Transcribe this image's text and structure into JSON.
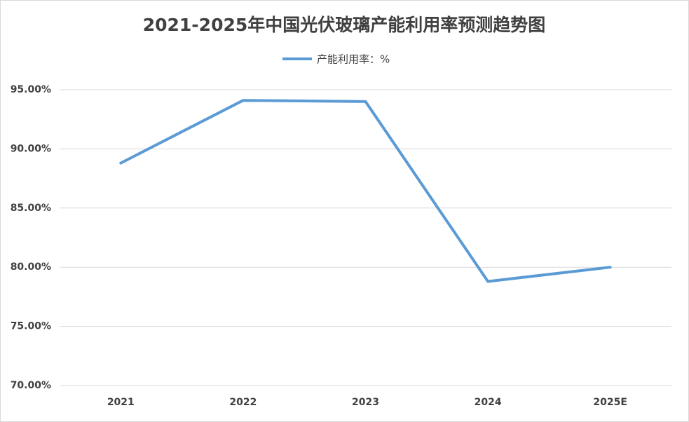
{
  "chart_data": {
    "type": "line",
    "title": "2021-2025年中国光伏玻璃产能利用率预测趋势图",
    "categories": [
      "2021",
      "2022",
      "2023",
      "2024",
      "2025E"
    ],
    "series": [
      {
        "name": "产能利用率：%",
        "color": "#5b9bd5",
        "values": [
          88.8,
          94.1,
          94.0,
          78.8,
          80.0
        ]
      }
    ],
    "ylim": [
      70,
      95
    ],
    "yticks": [
      {
        "value": 70,
        "label": "70.00%"
      },
      {
        "value": 75,
        "label": "75.00%"
      },
      {
        "value": 80,
        "label": "80.00%"
      },
      {
        "value": 85,
        "label": "85.00%"
      },
      {
        "value": 90,
        "label": "90.00%"
      },
      {
        "value": 95,
        "label": "95.00%"
      }
    ],
    "grid": true,
    "legend": "top"
  }
}
